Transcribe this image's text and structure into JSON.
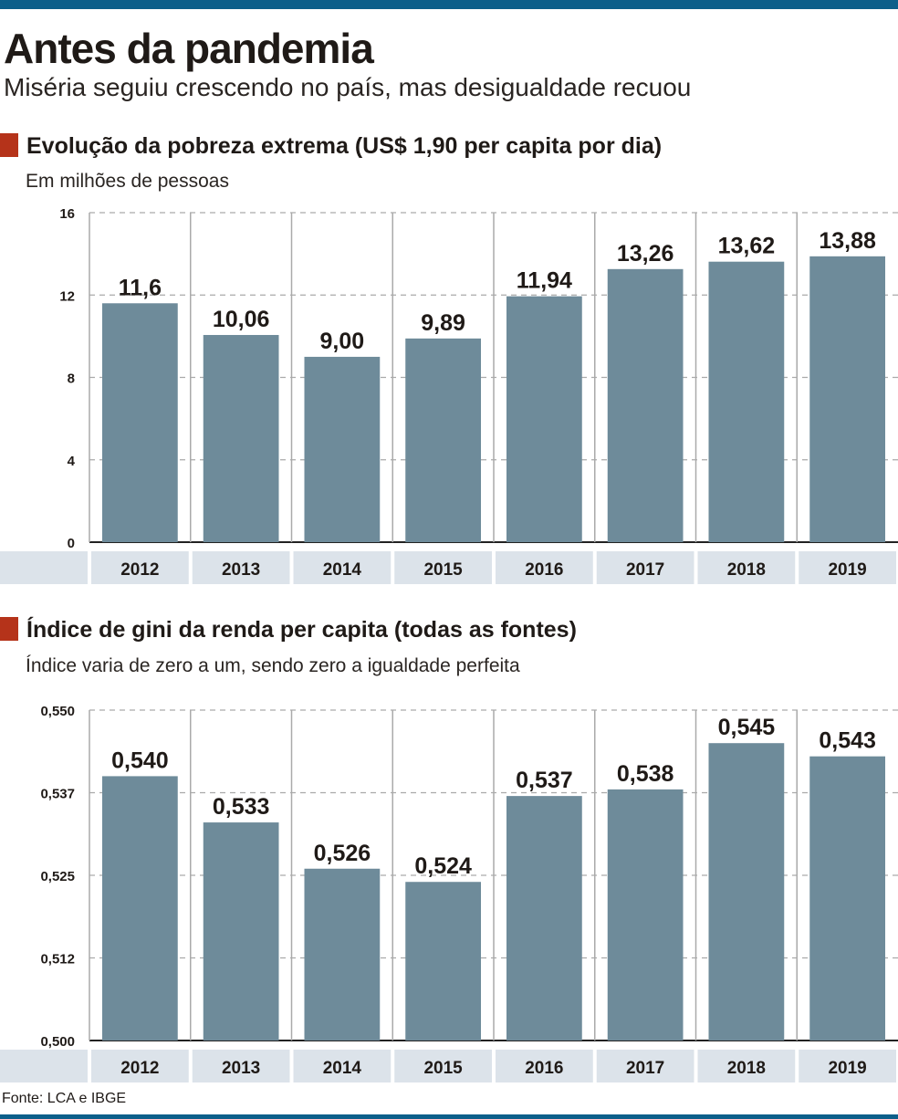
{
  "header": {
    "title": "Antes da pandemia",
    "subtitle": "Miséria seguiu crescendo no país, mas desigualdade recuou"
  },
  "colors": {
    "bar": "#6e8b9a",
    "accent": "#b5331a",
    "band": "#dce3ea",
    "frame": "#0c5f8a"
  },
  "chart_data": [
    {
      "type": "bar",
      "title": "Evolução da pobreza extrema (US$ 1,90 per capita por dia)",
      "subtitle": "Em milhões de pessoas",
      "categories": [
        "2012",
        "2013",
        "2014",
        "2015",
        "2016",
        "2017",
        "2018",
        "2019"
      ],
      "values": [
        11.6,
        10.06,
        9.0,
        9.89,
        11.94,
        13.26,
        13.62,
        13.88
      ],
      "labels": [
        "11,6",
        "10,06",
        "9,00",
        "9,89",
        "11,94",
        "13,26",
        "13,62",
        "13,88"
      ],
      "ylim": [
        0,
        16
      ],
      "yticks": [
        0,
        4,
        8,
        12,
        16
      ],
      "ytick_labels": [
        "0",
        "4",
        "8",
        "12",
        "16"
      ],
      "grid": true
    },
    {
      "type": "bar",
      "title": "Índice de gini da renda per capita (todas as fontes)",
      "subtitle": "Índice varia de zero a um, sendo zero a igualdade perfeita",
      "categories": [
        "2012",
        "2013",
        "2014",
        "2015",
        "2016",
        "2017",
        "2018",
        "2019"
      ],
      "values": [
        0.54,
        0.533,
        0.526,
        0.524,
        0.537,
        0.538,
        0.545,
        0.543
      ],
      "labels": [
        "0,540",
        "0,533",
        "0,526",
        "0,524",
        "0,537",
        "0,538",
        "0,545",
        "0,543"
      ],
      "ylim": [
        0.5,
        0.55
      ],
      "yticks": [
        0.5,
        0.5125,
        0.525,
        0.5375,
        0.55
      ],
      "ytick_labels": [
        "0,500",
        "0,512",
        "0,525",
        "0,537",
        "0,550"
      ],
      "grid": true
    }
  ],
  "footer": {
    "source": "Fonte: LCA e IBGE"
  }
}
